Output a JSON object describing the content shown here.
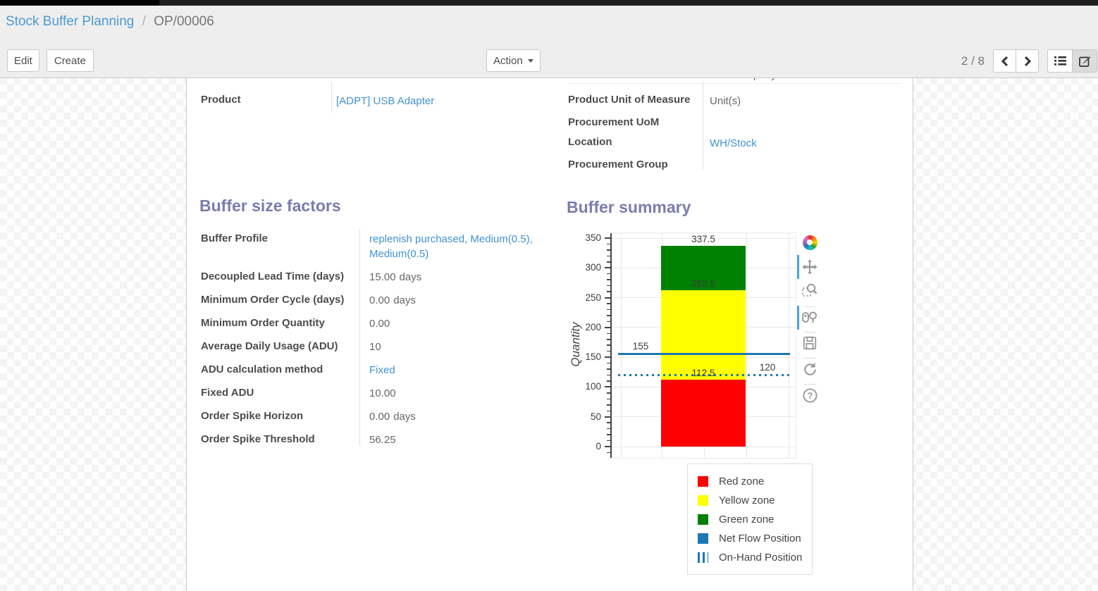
{
  "breadcrumb": {
    "parent": "Stock Buffer Planning",
    "separator": "/",
    "current": "OP/00006"
  },
  "toolbar": {
    "edit_label": "Edit",
    "create_label": "Create",
    "action_label": "Action",
    "pager": "2 / 8",
    "icons": [
      "previous-arrow",
      "next-arrow",
      "list-view",
      "form-view"
    ],
    "active_view": "form"
  },
  "colors": {
    "link": "#4292d0",
    "section_title": "#7c7bad",
    "header_bg": "#efeeee",
    "red_zone": "#ff0000",
    "yellow_zone": "#ffff00",
    "green_zone": "#008000",
    "line_blue": "#1f77b4",
    "modebar_active": "#4aa3df"
  },
  "sheet": {
    "clipped_row_value": "YourCompany",
    "top_fields_left": [
      {
        "label": "Product",
        "value": "[ADPT] USB Adapter",
        "value_class": "link"
      }
    ],
    "top_fields_right": [
      {
        "label": "Product Unit of Measure",
        "value": "Unit(s)"
      },
      {
        "label": "Procurement UoM",
        "value": ""
      },
      {
        "label": "Location",
        "value": "WH/Stock",
        "value_class": "link"
      },
      {
        "label": "Procurement Group",
        "value": ""
      }
    ],
    "factors_section_title": "Buffer size factors",
    "factor_fields": [
      {
        "label": "Buffer Profile",
        "value": "replenish purchased, Medium(0.5), Medium(0.5)",
        "value_class": "link"
      },
      {
        "label": "Decoupled Lead Time (days)",
        "value": "15.00",
        "suffix": "days"
      },
      {
        "label": "Minimum Order Cycle (days)",
        "value": "0.00",
        "suffix": "days"
      },
      {
        "label": "Minimum Order Quantity",
        "value": "0.00"
      },
      {
        "label": "Average Daily Usage (ADU)",
        "value": "10"
      },
      {
        "label": "ADU calculation method",
        "value": "Fixed",
        "value_class": "link"
      },
      {
        "label": "Fixed ADU",
        "value": "10.00"
      },
      {
        "label": "Order Spike Horizon",
        "value": "0.00",
        "suffix": "days"
      },
      {
        "label": "Order Spike Threshold",
        "value": "56.25"
      }
    ],
    "summary_section_title": "Buffer summary"
  },
  "chart_data": {
    "type": "bar",
    "title": "Buffer summary",
    "xlabel": "",
    "ylabel": "Quantity",
    "ylim": [
      0,
      350
    ],
    "yticks": [
      0,
      50,
      100,
      150,
      200,
      250,
      300,
      350
    ],
    "minor_tick_step": 10,
    "grid": true,
    "legend_position": "bottom-right",
    "zones": [
      {
        "name": "Red zone",
        "color": "#ff0000",
        "from": 0,
        "to": 112.5
      },
      {
        "name": "Yellow zone",
        "color": "#ffff00",
        "from": 112.5,
        "to": 262.5
      },
      {
        "name": "Green zone",
        "color": "#008000",
        "from": 262.5,
        "to": 337.5
      }
    ],
    "lines": [
      {
        "name": "Net Flow Position",
        "value": 155,
        "style": "solid",
        "color": "#1f77b4",
        "label_side": "left"
      },
      {
        "name": "On-Hand Position",
        "value": 120,
        "style": "dotted",
        "color": "#1f77b4",
        "label_side": "right"
      }
    ],
    "bar_value_labels": [
      "337.5",
      "262.5",
      "112.5"
    ],
    "line_value_labels": [
      "155",
      "120"
    ],
    "legend": [
      {
        "label": "Red zone",
        "swatch": "sw-red"
      },
      {
        "label": "Yellow zone",
        "swatch": "sw-yellow"
      },
      {
        "label": "Green zone",
        "swatch": "sw-green"
      },
      {
        "label": "Net Flow Position",
        "swatch": "sw-line"
      },
      {
        "label": "On-Hand Position",
        "swatch": "sw-dotted"
      }
    ]
  },
  "modebar": {
    "icons": [
      "plotly-logo",
      "pan",
      "box-zoom",
      "compare-hover",
      "save",
      "reset-axes",
      "help"
    ]
  }
}
